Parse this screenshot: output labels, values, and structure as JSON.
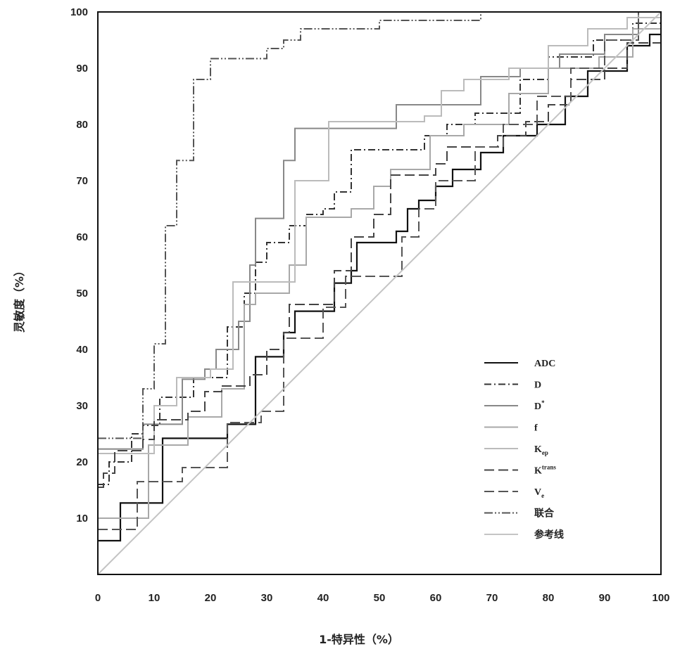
{
  "chart_data": {
    "type": "line",
    "title": "",
    "xlabel": "1-特异性（%）",
    "ylabel": "灵敏度（%）",
    "xlim": [
      0,
      100
    ],
    "ylim": [
      0,
      100
    ],
    "xticks": [
      0,
      10,
      20,
      30,
      40,
      50,
      60,
      70,
      80,
      90,
      100
    ],
    "yticks": [
      10,
      20,
      30,
      40,
      50,
      60,
      70,
      80,
      90,
      100
    ],
    "grid": false,
    "legend_position": "bottom-right",
    "series": [
      {
        "name": "ADC",
        "color": "#111111",
        "dash": "solid",
        "points": [
          [
            0,
            6
          ],
          [
            4,
            6
          ],
          [
            4,
            12.7
          ],
          [
            11.5,
            12.7
          ],
          [
            11.5,
            24.2
          ],
          [
            23,
            24.2
          ],
          [
            23,
            26.7
          ],
          [
            28,
            26.7
          ],
          [
            28,
            38.7
          ],
          [
            33,
            38.7
          ],
          [
            33,
            43
          ],
          [
            35,
            43
          ],
          [
            35,
            46.8
          ],
          [
            42,
            46.8
          ],
          [
            42,
            51.8
          ],
          [
            45,
            51.8
          ],
          [
            45,
            54
          ],
          [
            46,
            54
          ],
          [
            46,
            59
          ],
          [
            53,
            59
          ],
          [
            53,
            61
          ],
          [
            55,
            61
          ],
          [
            55,
            65
          ],
          [
            57,
            65
          ],
          [
            57,
            66.5
          ],
          [
            60,
            66.5
          ],
          [
            60,
            69
          ],
          [
            63,
            69
          ],
          [
            63,
            72
          ],
          [
            68,
            72
          ],
          [
            68,
            75
          ],
          [
            72,
            75
          ],
          [
            72,
            78
          ],
          [
            78,
            78
          ],
          [
            78,
            80
          ],
          [
            83,
            80
          ],
          [
            83,
            85
          ],
          [
            87,
            85
          ],
          [
            87,
            89.5
          ],
          [
            94,
            89.5
          ],
          [
            94,
            94
          ],
          [
            98,
            94
          ],
          [
            98,
            96
          ],
          [
            100,
            96
          ]
        ]
      },
      {
        "name": "D",
        "color": "#333333",
        "dash": "10,4,2,4",
        "points": [
          [
            0,
            16
          ],
          [
            2,
            16
          ],
          [
            2,
            20
          ],
          [
            6,
            20
          ],
          [
            6,
            25
          ],
          [
            8,
            25
          ],
          [
            8,
            26.5
          ],
          [
            11,
            26.5
          ],
          [
            11,
            31.5
          ],
          [
            17,
            31.5
          ],
          [
            17,
            35
          ],
          [
            23,
            35
          ],
          [
            23,
            44
          ],
          [
            26,
            44
          ],
          [
            26,
            50
          ],
          [
            28,
            50
          ],
          [
            28,
            55.5
          ],
          [
            30,
            55.5
          ],
          [
            30,
            59
          ],
          [
            34,
            59
          ],
          [
            34,
            62
          ],
          [
            37,
            62
          ],
          [
            37,
            64
          ],
          [
            40,
            64
          ],
          [
            40,
            65
          ],
          [
            42,
            65
          ],
          [
            42,
            68
          ],
          [
            45,
            68
          ],
          [
            45,
            75.5
          ],
          [
            58,
            75.5
          ],
          [
            58,
            78
          ],
          [
            62,
            78
          ],
          [
            62,
            80
          ],
          [
            67,
            80
          ],
          [
            67,
            82
          ],
          [
            75,
            82
          ],
          [
            75,
            88
          ],
          [
            80,
            88
          ],
          [
            80,
            92
          ],
          [
            88,
            92
          ],
          [
            88,
            95
          ],
          [
            95,
            95
          ],
          [
            95,
            98
          ],
          [
            100,
            98
          ]
        ]
      },
      {
        "name": "D*",
        "color": "#888888",
        "dash": "solid",
        "points": [
          [
            0,
            22.3
          ],
          [
            8,
            22.3
          ],
          [
            8,
            26.7
          ],
          [
            15,
            26.7
          ],
          [
            15,
            34.7
          ],
          [
            19,
            34.7
          ],
          [
            19,
            36.5
          ],
          [
            21,
            36.5
          ],
          [
            21,
            40
          ],
          [
            25,
            40
          ],
          [
            25,
            45
          ],
          [
            27,
            45
          ],
          [
            27,
            55
          ],
          [
            28,
            55
          ],
          [
            28,
            63.3
          ],
          [
            33,
            63.3
          ],
          [
            33,
            73.6
          ],
          [
            35,
            73.6
          ],
          [
            35,
            79.3
          ],
          [
            53,
            79.3
          ],
          [
            53,
            83.5
          ],
          [
            68,
            83.5
          ],
          [
            68,
            88.5
          ],
          [
            75,
            88.5
          ],
          [
            75,
            90
          ],
          [
            82,
            90
          ],
          [
            82,
            92.5
          ],
          [
            90,
            92.5
          ],
          [
            90,
            96
          ],
          [
            96,
            96
          ],
          [
            96,
            100
          ],
          [
            100,
            100
          ]
        ]
      },
      {
        "name": "f",
        "color": "#a8a8a8",
        "dash": "solid",
        "points": [
          [
            0,
            10
          ],
          [
            9,
            10
          ],
          [
            9,
            23
          ],
          [
            16,
            23
          ],
          [
            16,
            28
          ],
          [
            22,
            28
          ],
          [
            22,
            33
          ],
          [
            26,
            33
          ],
          [
            26,
            48
          ],
          [
            28,
            48
          ],
          [
            28,
            50
          ],
          [
            34,
            50
          ],
          [
            34,
            55
          ],
          [
            37,
            55
          ],
          [
            37,
            63.5
          ],
          [
            45,
            63.5
          ],
          [
            45,
            65
          ],
          [
            49,
            65
          ],
          [
            49,
            69
          ],
          [
            52,
            69
          ],
          [
            52,
            72
          ],
          [
            59,
            72
          ],
          [
            59,
            78
          ],
          [
            65,
            78
          ],
          [
            65,
            80
          ],
          [
            73,
            80
          ],
          [
            73,
            85.5
          ],
          [
            80,
            85.5
          ],
          [
            80,
            90
          ],
          [
            89,
            90
          ],
          [
            89,
            92
          ],
          [
            95,
            92
          ],
          [
            95,
            97
          ],
          [
            100,
            97
          ]
        ]
      },
      {
        "name": "K_ep",
        "color": "#bbbbbb",
        "dash": "solid",
        "points": [
          [
            0,
            21.5
          ],
          [
            10,
            21.5
          ],
          [
            10,
            30
          ],
          [
            14,
            30
          ],
          [
            14,
            35
          ],
          [
            20,
            35
          ],
          [
            20,
            36.5
          ],
          [
            24,
            36.5
          ],
          [
            24,
            52
          ],
          [
            30,
            52
          ],
          [
            30,
            52
          ],
          [
            35,
            52
          ],
          [
            35,
            70
          ],
          [
            41,
            70
          ],
          [
            41,
            80.5
          ],
          [
            58,
            80.5
          ],
          [
            58,
            81.5
          ],
          [
            61,
            81.5
          ],
          [
            61,
            86
          ],
          [
            65,
            86
          ],
          [
            65,
            88
          ],
          [
            73,
            88
          ],
          [
            73,
            90
          ],
          [
            80,
            90
          ],
          [
            80,
            94
          ],
          [
            87,
            94
          ],
          [
            87,
            97
          ],
          [
            94,
            97
          ],
          [
            94,
            99
          ],
          [
            100,
            99
          ]
        ]
      },
      {
        "name": "K^trans",
        "color": "#444444",
        "dash": "14,6",
        "points": [
          [
            0,
            15.5
          ],
          [
            1,
            15.5
          ],
          [
            1,
            18
          ],
          [
            3,
            18
          ],
          [
            3,
            22
          ],
          [
            8,
            22
          ],
          [
            8,
            24
          ],
          [
            10,
            24
          ],
          [
            10,
            27.5
          ],
          [
            16,
            27.5
          ],
          [
            16,
            29
          ],
          [
            19,
            29
          ],
          [
            19,
            32.5
          ],
          [
            22,
            32.5
          ],
          [
            22,
            33.5
          ],
          [
            27,
            33.5
          ],
          [
            27,
            35.5
          ],
          [
            30,
            35.5
          ],
          [
            30,
            40
          ],
          [
            33,
            40
          ],
          [
            33,
            43
          ],
          [
            34,
            43
          ],
          [
            34,
            48
          ],
          [
            42,
            48
          ],
          [
            42,
            54
          ],
          [
            45,
            54
          ],
          [
            45,
            60
          ],
          [
            49,
            60
          ],
          [
            49,
            64
          ],
          [
            52,
            64
          ],
          [
            52,
            71
          ],
          [
            60,
            71
          ],
          [
            60,
            73
          ],
          [
            62,
            73
          ],
          [
            62,
            76
          ],
          [
            71,
            76
          ],
          [
            71,
            78
          ],
          [
            76,
            78
          ],
          [
            76,
            80.5
          ],
          [
            80,
            80.5
          ],
          [
            80,
            83.5
          ],
          [
            84,
            83.5
          ],
          [
            84,
            88
          ],
          [
            90,
            88
          ],
          [
            90,
            90
          ],
          [
            94,
            90
          ],
          [
            94,
            94.5
          ],
          [
            100,
            94.5
          ]
        ]
      },
      {
        "name": "V_e",
        "color": "#555555",
        "dash": "14,6",
        "points": [
          [
            0,
            8
          ],
          [
            7,
            8
          ],
          [
            7,
            16.5
          ],
          [
            15,
            16.5
          ],
          [
            15,
            19
          ],
          [
            23,
            19
          ],
          [
            23,
            27
          ],
          [
            29,
            27
          ],
          [
            29,
            29
          ],
          [
            33,
            29
          ],
          [
            33,
            42
          ],
          [
            40,
            42
          ],
          [
            40,
            47.5
          ],
          [
            44,
            47.5
          ],
          [
            44,
            53
          ],
          [
            54,
            53
          ],
          [
            54,
            60
          ],
          [
            57,
            60
          ],
          [
            57,
            65
          ],
          [
            60,
            65
          ],
          [
            60,
            70
          ],
          [
            67,
            70
          ],
          [
            67,
            76
          ],
          [
            72,
            76
          ],
          [
            72,
            80
          ],
          [
            78,
            80
          ],
          [
            78,
            85
          ],
          [
            84,
            85
          ],
          [
            84,
            90
          ],
          [
            90,
            90
          ],
          [
            90,
            95
          ],
          [
            96,
            95
          ],
          [
            96,
            100
          ],
          [
            100,
            100
          ]
        ]
      },
      {
        "name": "联合",
        "color": "#555555",
        "dash": "12,3,2,3,2,3",
        "points": [
          [
            0,
            24.2
          ],
          [
            8,
            24.2
          ],
          [
            8,
            33
          ],
          [
            10,
            33
          ],
          [
            10,
            41
          ],
          [
            12,
            41
          ],
          [
            12,
            62
          ],
          [
            14,
            62
          ],
          [
            14,
            73.6
          ],
          [
            17,
            73.6
          ],
          [
            17,
            88
          ],
          [
            20,
            88
          ],
          [
            20,
            91.7
          ],
          [
            30,
            91.7
          ],
          [
            30,
            93.5
          ],
          [
            33,
            93.5
          ],
          [
            33,
            95
          ],
          [
            36,
            95
          ],
          [
            36,
            97
          ],
          [
            50,
            97
          ],
          [
            50,
            98.5
          ],
          [
            68,
            98.5
          ],
          [
            68,
            100
          ],
          [
            100,
            100
          ]
        ]
      },
      {
        "name": "参考线",
        "color": "#c4c4c4",
        "dash": "solid",
        "points": [
          [
            0,
            0
          ],
          [
            100,
            100
          ]
        ]
      }
    ]
  }
}
